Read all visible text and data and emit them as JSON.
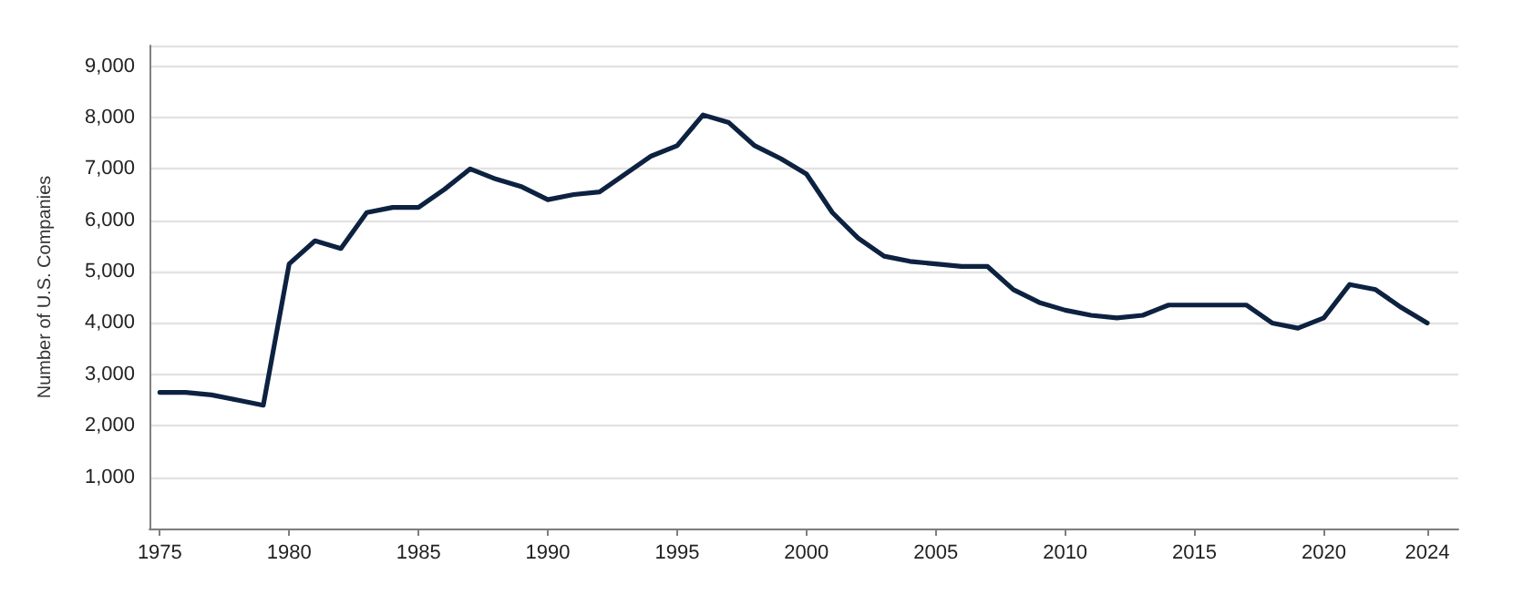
{
  "chart_data": {
    "type": "line",
    "ylabel": "Number of U.S. Companies",
    "x": [
      1975,
      1976,
      1977,
      1978,
      1979,
      1980,
      1981,
      1982,
      1983,
      1984,
      1985,
      1986,
      1987,
      1988,
      1989,
      1990,
      1991,
      1992,
      1993,
      1994,
      1995,
      1996,
      1997,
      1998,
      1999,
      2000,
      2001,
      2002,
      2003,
      2004,
      2005,
      2006,
      2007,
      2008,
      2009,
      2010,
      2011,
      2012,
      2013,
      2014,
      2015,
      2016,
      2017,
      2018,
      2019,
      2020,
      2021,
      2022,
      2023,
      2024
    ],
    "series": [
      {
        "color": "#0d2240",
        "values": [
          2650,
          2650,
          2600,
          2500,
          2400,
          5150,
          5600,
          5450,
          6150,
          6250,
          6250,
          6600,
          7000,
          6800,
          6650,
          6400,
          6500,
          6550,
          6900,
          7250,
          7450,
          8050,
          7900,
          7450,
          7200,
          6900,
          6150,
          5650,
          5300,
          5200,
          5150,
          5100,
          5100,
          4650,
          4400,
          4250,
          4150,
          4100,
          4150,
          4350,
          4350,
          4350,
          4350,
          4000,
          3900,
          4100,
          4750,
          4650,
          4300,
          4000
        ]
      }
    ],
    "xlim": [
      1974.6,
      2025.2
    ],
    "xticks": [
      1975,
      1980,
      1985,
      1990,
      1995,
      2000,
      2005,
      2010,
      2015,
      2020,
      2024
    ],
    "ylim": [
      0,
      9400
    ],
    "yticks": [
      {
        "value": 1000,
        "label": "1,000"
      },
      {
        "value": 2000,
        "label": "2,000"
      },
      {
        "value": 3000,
        "label": "3,000"
      },
      {
        "value": 4000,
        "label": "4,000"
      },
      {
        "value": 5000,
        "label": "5,000"
      },
      {
        "value": 6000,
        "label": "6,000"
      },
      {
        "value": 7000,
        "label": "7,000"
      },
      {
        "value": 8000,
        "label": "8,000"
      },
      {
        "value": 9000,
        "label": "9,000"
      }
    ],
    "grid": "y",
    "marker": "none",
    "line_style": "solid"
  }
}
